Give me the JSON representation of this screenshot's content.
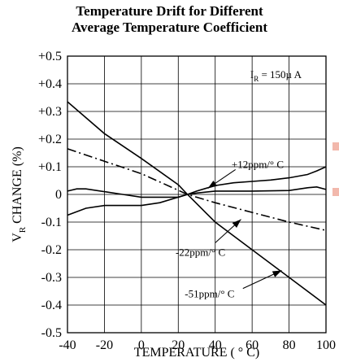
{
  "chart_data": {
    "type": "line",
    "title_line1": "Temperature Drift for Different",
    "title_line2": "Average Temperature Coefficient",
    "xlabel": "TEMPERATURE ( ° C)",
    "ylabel": "V",
    "ylabel_sub": "R",
    "ylabel_tail": " CHANGE (%)",
    "xlim": [
      -40,
      100
    ],
    "ylim": [
      -0.5,
      0.5
    ],
    "x_ticks": [
      -40,
      -20,
      0,
      20,
      40,
      60,
      80,
      100
    ],
    "x_tick_labels": [
      "-40",
      "-20",
      "0",
      "20",
      "40",
      "60",
      "80",
      "100"
    ],
    "y_ticks": [
      0.5,
      0.4,
      0.3,
      0.2,
      0.1,
      0,
      -0.1,
      -0.2,
      -0.3,
      -0.4,
      -0.5
    ],
    "y_tick_labels": [
      "+0.5",
      "+0.4",
      "+0.3",
      "+0.2",
      "+0.1",
      "0",
      "-0.1",
      "-0.2",
      "-0.3",
      "-0.4",
      "-0.5"
    ],
    "grid": true,
    "condition": {
      "pre": "I",
      "sub": "R",
      "post": " = 150µ A"
    },
    "series": [
      {
        "name": "+12ppm/° C",
        "style": "solid",
        "points": [
          [
            -40,
            -0.075
          ],
          [
            -30,
            -0.05
          ],
          [
            -20,
            -0.04
          ],
          [
            -10,
            -0.04
          ],
          [
            0,
            -0.04
          ],
          [
            10,
            -0.03
          ],
          [
            20,
            -0.01
          ],
          [
            25,
            0
          ],
          [
            30,
            0.012
          ],
          [
            40,
            0.032
          ],
          [
            50,
            0.042
          ],
          [
            60,
            0.047
          ],
          [
            70,
            0.052
          ],
          [
            80,
            0.06
          ],
          [
            90,
            0.072
          ],
          [
            95,
            0.085
          ],
          [
            100,
            0.1
          ]
        ]
      },
      {
        "name": "",
        "style": "solid",
        "points": [
          [
            -40,
            0.012
          ],
          [
            -35,
            0.02
          ],
          [
            -30,
            0.02
          ],
          [
            -20,
            0.01
          ],
          [
            -10,
            0
          ],
          [
            0,
            -0.01
          ],
          [
            10,
            -0.01
          ],
          [
            20,
            -0.01
          ],
          [
            25,
            0
          ],
          [
            30,
            0.005
          ],
          [
            40,
            0.012
          ],
          [
            60,
            0.012
          ],
          [
            80,
            0.014
          ],
          [
            90,
            0.024
          ],
          [
            95,
            0.027
          ],
          [
            100,
            0.018
          ]
        ]
      },
      {
        "name": "-22ppm/° C",
        "style": "dashdot",
        "points": [
          [
            -40,
            0.165
          ],
          [
            -20,
            0.12
          ],
          [
            0,
            0.075
          ],
          [
            20,
            0.015
          ],
          [
            25,
            0
          ],
          [
            40,
            -0.03
          ],
          [
            60,
            -0.065
          ],
          [
            80,
            -0.1
          ],
          [
            100,
            -0.13
          ]
        ]
      },
      {
        "name": "-51ppm/° C",
        "style": "solid",
        "points": [
          [
            -40,
            0.335
          ],
          [
            -20,
            0.22
          ],
          [
            0,
            0.13
          ],
          [
            20,
            0.035
          ],
          [
            25,
            0
          ],
          [
            40,
            -0.1
          ],
          [
            60,
            -0.2
          ],
          [
            80,
            -0.3
          ],
          [
            100,
            -0.4
          ]
        ]
      }
    ],
    "annotations": [
      {
        "text": "+12ppm/° C",
        "text_at": [
          63,
          0.108
        ],
        "arrow_from": [
          51,
          0.09
        ],
        "arrow_to": [
          36,
          0.022
        ]
      },
      {
        "text": "-22ppm/° C",
        "text_at": [
          32,
          -0.21
        ],
        "arrow_from": [
          40,
          -0.175
        ],
        "arrow_to": [
          54,
          -0.09
        ]
      },
      {
        "text": "-51ppm/° C",
        "text_at": [
          37,
          -0.36
        ],
        "arrow_from": [
          55,
          -0.34
        ],
        "arrow_to": [
          76,
          -0.275
        ]
      }
    ],
    "accent_color": "#f2b8ac"
  }
}
